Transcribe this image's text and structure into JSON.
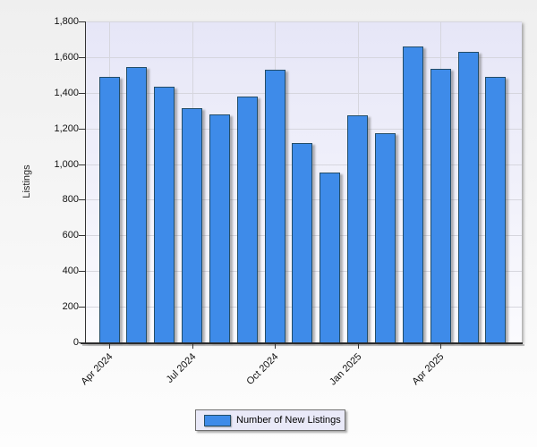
{
  "chart_data": {
    "type": "bar",
    "title": "",
    "xlabel": "",
    "ylabel": "Listings",
    "categories": [
      "Apr 2024",
      "May 2024",
      "Jun 2024",
      "Jul 2024",
      "Aug 2024",
      "Sep 2024",
      "Oct 2024",
      "Nov 2024",
      "Dec 2024",
      "Jan 2025",
      "Feb 2025",
      "Mar 2025",
      "Apr 2025",
      "May 2025",
      "Jun 2025"
    ],
    "values": [
      1490,
      1545,
      1435,
      1315,
      1280,
      1380,
      1530,
      1120,
      955,
      1275,
      1175,
      1660,
      1535,
      1630,
      1490
    ],
    "series_name": "Number of New Listings",
    "ylim": [
      0,
      1800
    ],
    "y_tick_step": 200,
    "y_tick_labels": [
      "0",
      "200",
      "400",
      "600",
      "800",
      "1,000",
      "1,200",
      "1,400",
      "1,600",
      "1,800"
    ],
    "x_ticks": [
      {
        "index": 0,
        "label": "Apr 2024"
      },
      {
        "index": 3,
        "label": "Jul 2024"
      },
      {
        "index": 6,
        "label": "Oct 2024"
      },
      {
        "index": 9,
        "label": "Jan 2025"
      },
      {
        "index": 12,
        "label": "Apr 2025"
      }
    ],
    "grid": true,
    "legend_position": "bottom"
  },
  "axes": {
    "y_title": "Listings"
  },
  "legend": {
    "label": "Number of New Listings"
  },
  "colors": {
    "bar_fill": "#3e8be9",
    "bar_border": "#234d68",
    "gridline": "#d6d6de",
    "axis": "#333333",
    "plot_bg_top": "#e6e6f7",
    "plot_bg_bottom": "#fbfbfe",
    "legend_bg": "#e9e9f8"
  }
}
